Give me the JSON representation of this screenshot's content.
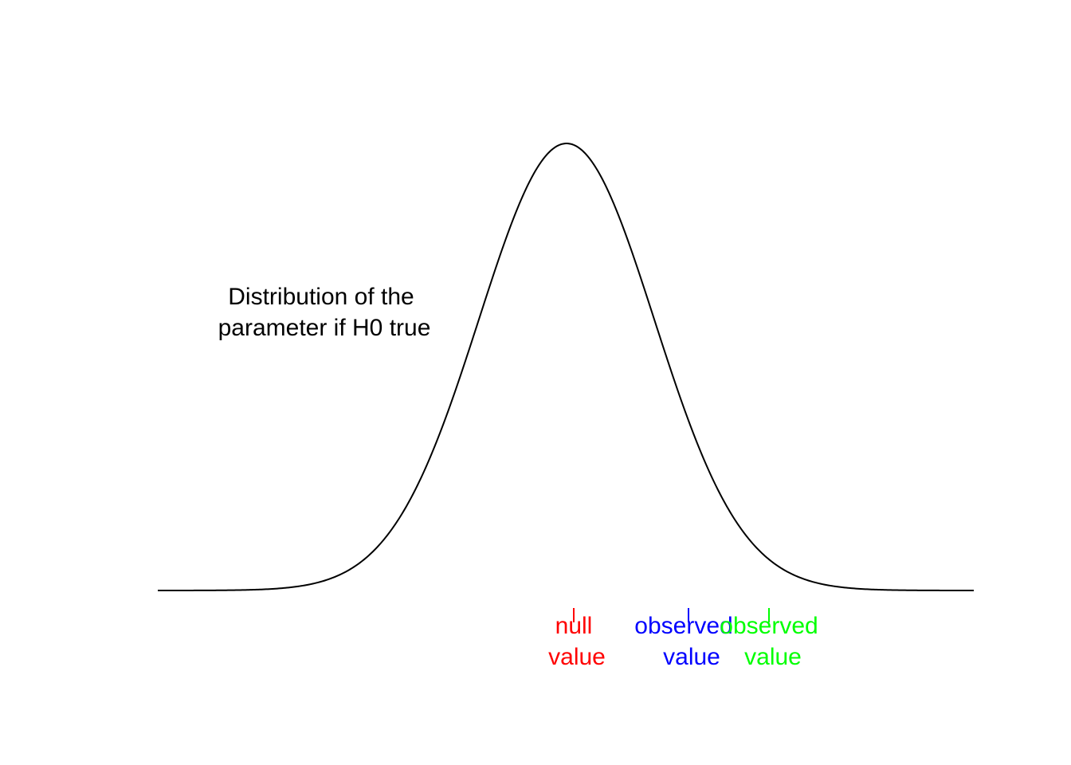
{
  "annotation": {
    "line1": "Distribution of the",
    "line2": "parameter if H0 true"
  },
  "markers": [
    {
      "line1": "null",
      "line2": "value",
      "color": "#ff0000"
    },
    {
      "line1": "observed",
      "line2": "value",
      "color": "#0000ff"
    },
    {
      "line1": "observed",
      "line2": "value",
      "color": "#00ff00"
    }
  ],
  "curve": {
    "type": "normal-density",
    "color": "#000000"
  }
}
